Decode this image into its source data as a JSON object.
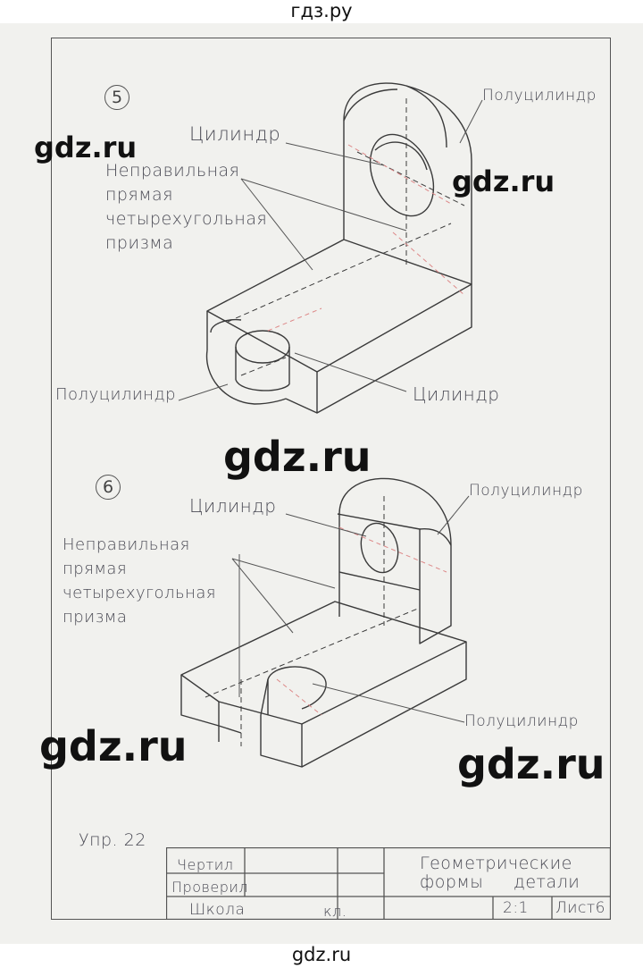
{
  "header": {
    "site": "гдз.ру"
  },
  "footer": {
    "site": "gdz.ru"
  },
  "watermarks": [
    "gdz.ru",
    "gdz.ru",
    "gdz.ru",
    "gdz.ru",
    "gdz.ru"
  ],
  "exercise5": {
    "number": "5",
    "labels": {
      "cylinder_top": "Цилиндр",
      "prism_line1": "Неправильная",
      "prism_line2": "прямая",
      "prism_line3": "четырехугольная",
      "prism_line4": "призма",
      "half_cylinder_top": "Полуцилиндр",
      "half_cylinder_bottom": "Полуцилиндр",
      "cylinder_bottom": "Цилиндр"
    }
  },
  "exercise6": {
    "number": "6",
    "labels": {
      "cylinder_top": "Цилиндр",
      "prism_line1": "Неправильная",
      "prism_line2": "прямая",
      "prism_line3": "четырехугольная",
      "prism_line4": "призма",
      "half_cylinder_top": "Полуцилиндр",
      "half_cylinder_bottom": "Полуцилиндр"
    }
  },
  "exercise_label": "Упр. 22",
  "title_block": {
    "drew": "Чертил",
    "checked": "Проверил",
    "school": "Школа",
    "grade": "кл.",
    "title_line1": "Геометрические",
    "title_line2": "формы",
    "title_line3": "детали",
    "scale": "2:1",
    "sheet": "Лист6"
  }
}
